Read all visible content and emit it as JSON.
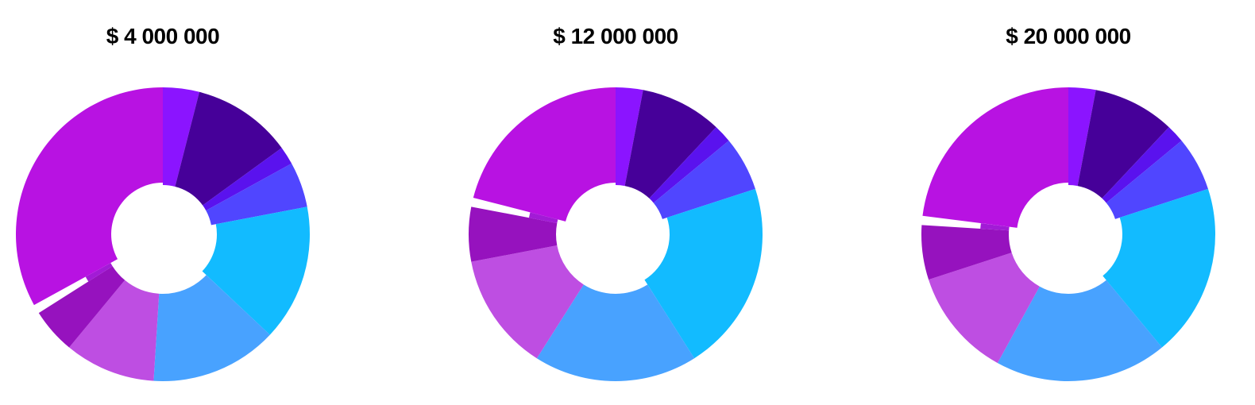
{
  "chart_data": [
    {
      "type": "pie",
      "title": "$ 4 000 000",
      "values": [
        4,
        11,
        2,
        5,
        15,
        14,
        10,
        5,
        1,
        33
      ],
      "colors": [
        "#8B14FF",
        "#460099",
        "#5A12EE",
        "#5046FF",
        "#12BBFF",
        "#48A2FF",
        "#BE4EE2",
        "#9612BE",
        "#A21BD6",
        "#B812E2"
      ],
      "radial": [
        1,
        1,
        1,
        1,
        1,
        1,
        1,
        1,
        0.6,
        1
      ]
    },
    {
      "type": "pie",
      "title": "$ 12 000 000",
      "values": [
        3,
        9,
        2,
        6,
        21,
        18,
        13,
        6,
        1,
        21
      ],
      "colors": [
        "#8B14FF",
        "#460099",
        "#5A12EE",
        "#5046FF",
        "#12BBFF",
        "#48A2FF",
        "#BE4EE2",
        "#9612BE",
        "#A21BD6",
        "#B812E2"
      ],
      "radial": [
        1,
        1,
        1,
        1,
        1,
        1,
        1,
        1,
        0.6,
        1
      ]
    },
    {
      "type": "pie",
      "title": "$ 20 000 000",
      "values": [
        3,
        9,
        2,
        6,
        19,
        19,
        12,
        6,
        1,
        23
      ],
      "colors": [
        "#8B14FF",
        "#460099",
        "#5A12EE",
        "#5046FF",
        "#12BBFF",
        "#48A2FF",
        "#BE4EE2",
        "#9612BE",
        "#A21BD6",
        "#B812E2"
      ],
      "radial": [
        1,
        1,
        1,
        1,
        1,
        1,
        1,
        1,
        0.6,
        1
      ]
    }
  ]
}
